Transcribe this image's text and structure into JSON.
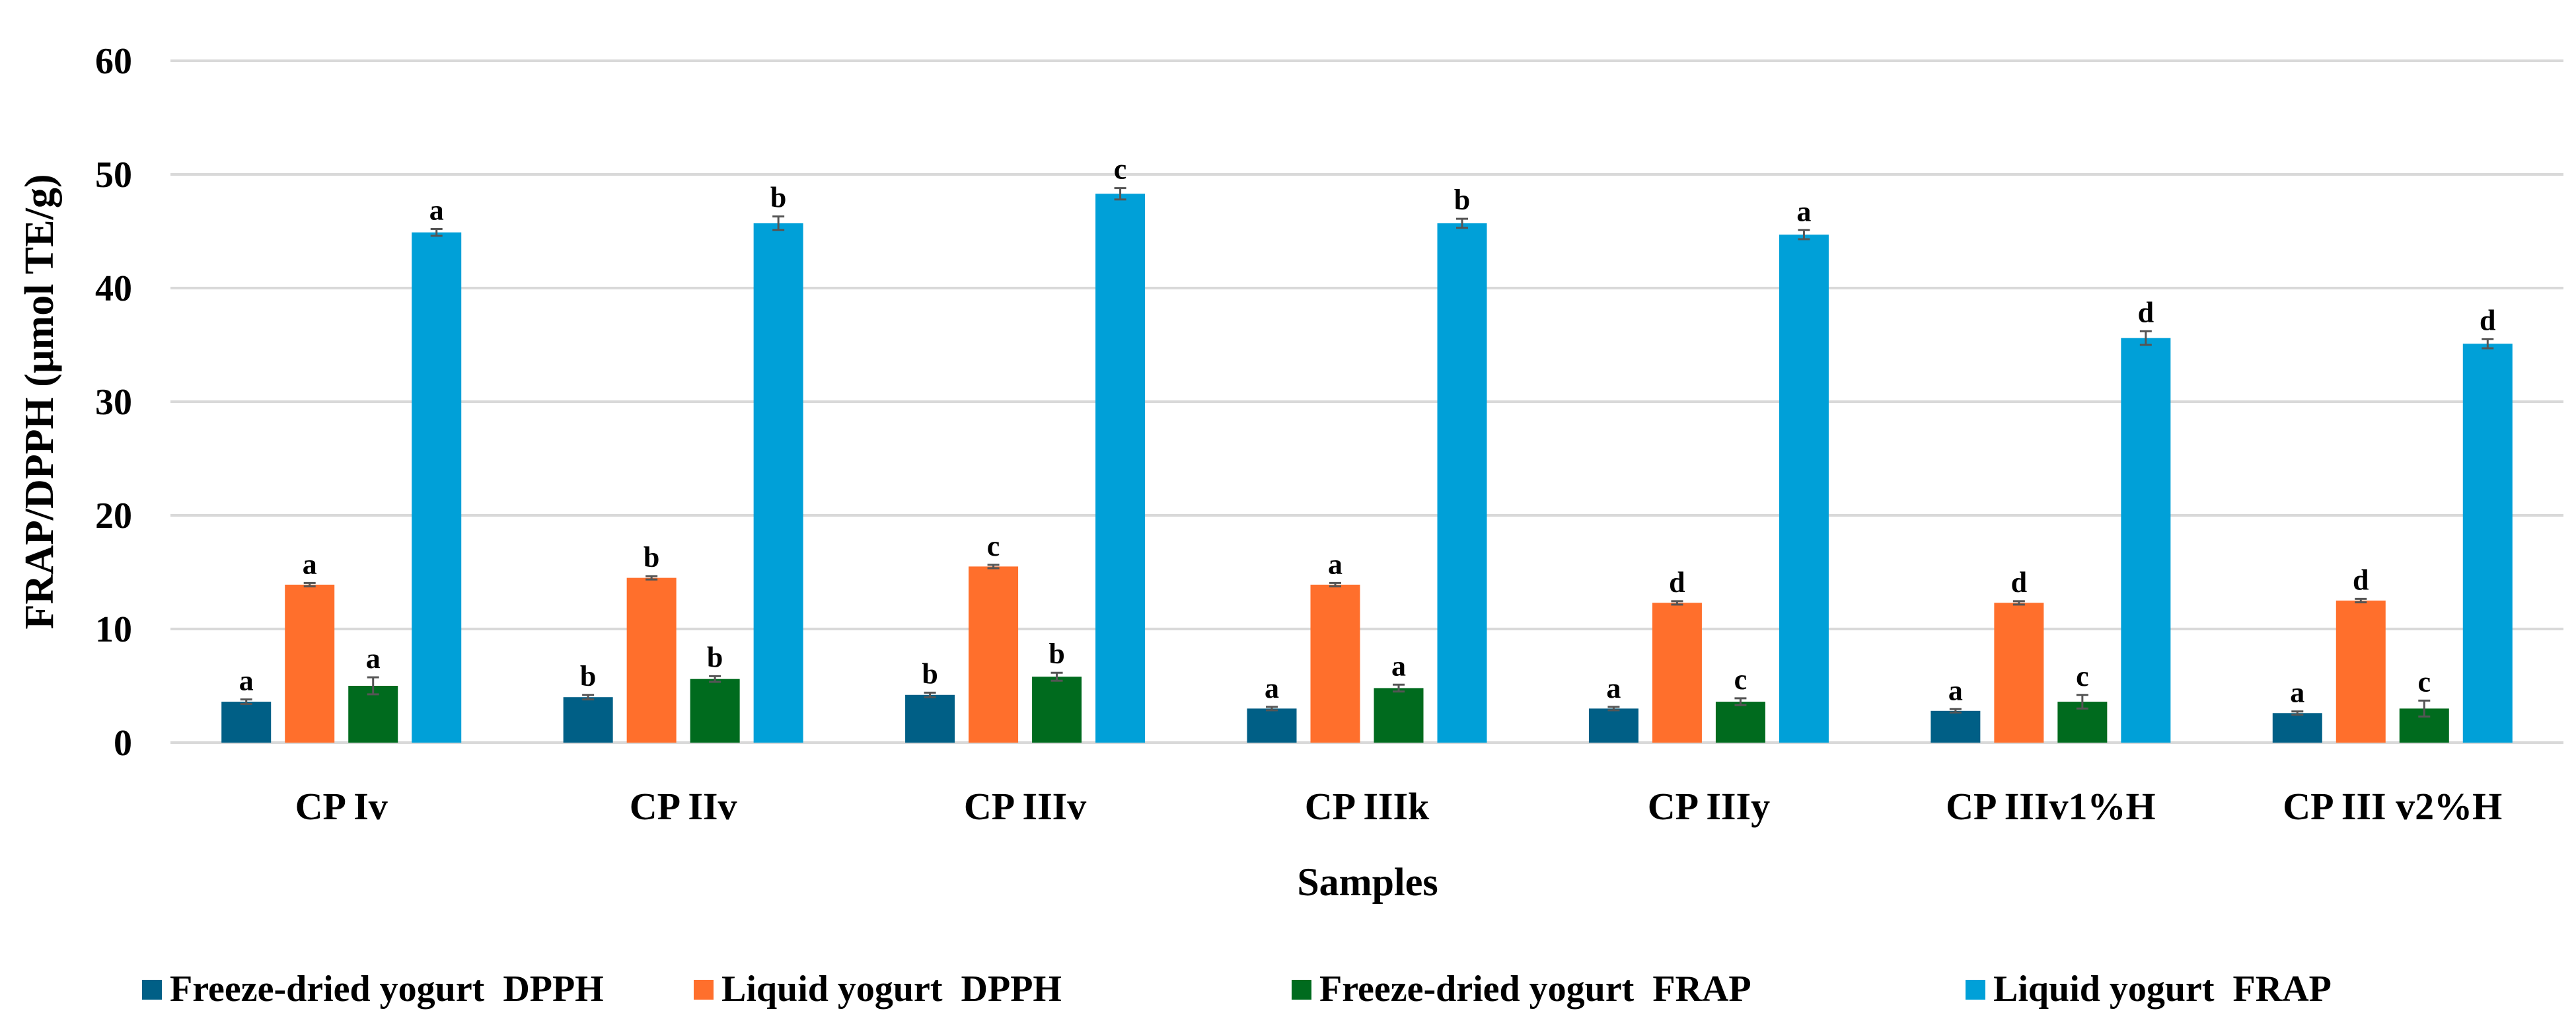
{
  "chart_data": {
    "type": "bar",
    "title": "",
    "xlabel": "Samples",
    "ylabel": "FRAP/DPPH (µmol TE/g)",
    "ylim": [
      0,
      60
    ],
    "yticks": [
      0,
      10,
      20,
      30,
      40,
      50,
      60
    ],
    "grid": true,
    "legend_position": "bottom",
    "categories": [
      "CP Iv",
      "CP IIv",
      "CP IIIv",
      "CP IIIk",
      "CP IIIy",
      "CP IIIv1%H",
      "CP III v2%H"
    ],
    "series": [
      {
        "name": "Freeze-dried yogurt  DPPH",
        "color": "#005F86",
        "values": [
          3.6,
          4.0,
          4.2,
          3.0,
          3.0,
          2.8,
          2.6
        ],
        "errors": [
          0.2,
          0.2,
          0.2,
          0.15,
          0.15,
          0.15,
          0.15
        ],
        "letters": [
          "a",
          "b",
          "b",
          "a",
          "a",
          "a",
          "a"
        ]
      },
      {
        "name": "Liquid yogurt  DPPH",
        "color": "#FF6F2C",
        "values": [
          13.9,
          14.5,
          15.5,
          13.9,
          12.3,
          12.3,
          12.5
        ],
        "errors": [
          0.15,
          0.15,
          0.15,
          0.15,
          0.15,
          0.15,
          0.15
        ],
        "letters": [
          "a",
          "b",
          "c",
          "a",
          "d",
          "d",
          "d"
        ]
      },
      {
        "name": "Freeze-dried yogurt  FRAP",
        "color": "#006B1E",
        "values": [
          5.0,
          5.6,
          5.8,
          4.8,
          3.6,
          3.6,
          3.0
        ],
        "errors": [
          0.75,
          0.25,
          0.35,
          0.3,
          0.3,
          0.6,
          0.7
        ],
        "letters": [
          "a",
          "b",
          "b",
          "a",
          "c",
          "c",
          "c"
        ]
      },
      {
        "name": "Liquid yogurt  FRAP",
        "color": "#00A0D8",
        "values": [
          44.9,
          45.7,
          48.3,
          45.7,
          44.7,
          35.6,
          35.1
        ],
        "errors": [
          0.3,
          0.6,
          0.5,
          0.4,
          0.4,
          0.6,
          0.4
        ],
        "letters": [
          "a",
          "b",
          "c",
          "b",
          "a",
          "d",
          "d"
        ]
      }
    ]
  }
}
